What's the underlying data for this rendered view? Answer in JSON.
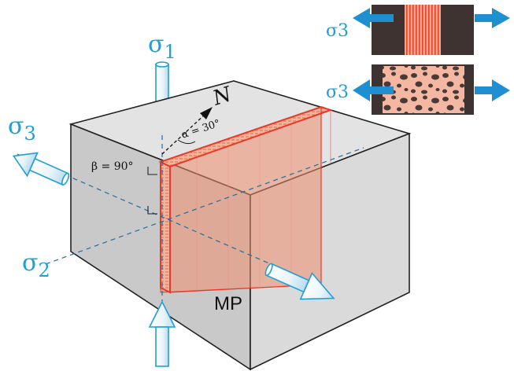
{
  "diagram": {
    "stress_labels": {
      "sigma1": "σ1",
      "sigma1_base": "σ",
      "sigma1_sub": "1",
      "sigma2_base": "σ",
      "sigma2_sub": "2",
      "sigma3_base": "σ",
      "sigma3_sub": "3"
    },
    "north_label": "N",
    "alpha_label": "α = 30°",
    "beta_label": "β = 90°",
    "block_label": "MP",
    "inset": {
      "top_label": "σ3",
      "bottom_label": "σ3"
    }
  },
  "colors": {
    "stress_blue": "#1e9fd8",
    "fault_red": "#e8392a",
    "fault_fill": "#f0a58c",
    "block_light": "#d9d9d9",
    "block_mid": "#cbcbcb",
    "block_dark": "#bdbdbd",
    "rock_dark": "#4a3a37"
  }
}
